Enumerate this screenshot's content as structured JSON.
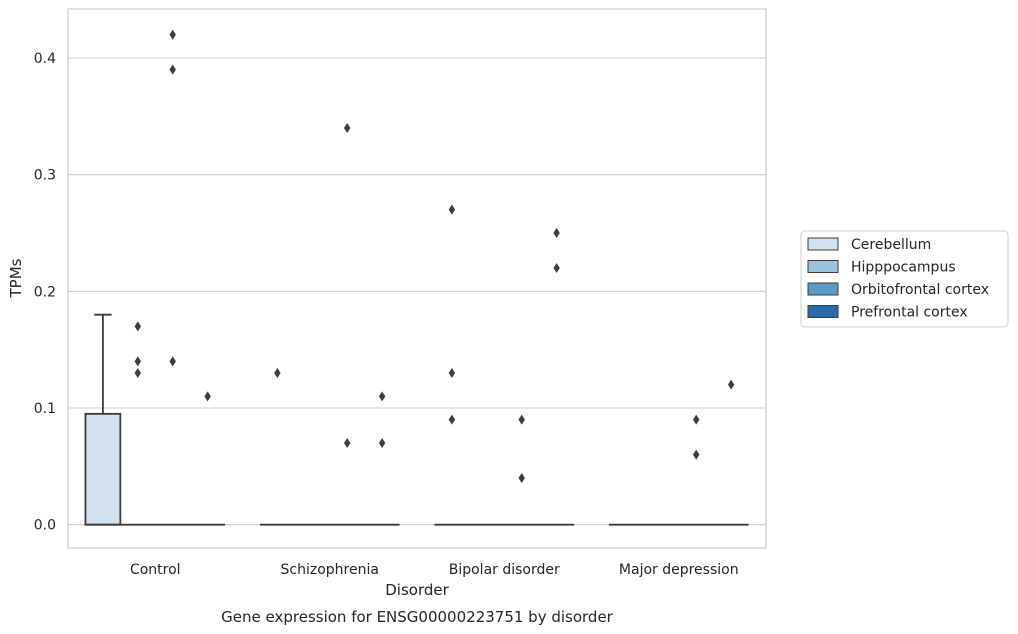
{
  "chart_data": {
    "type": "box",
    "title": "Gene expression for ENSG00000223751 by disorder",
    "xlabel": "Disorder",
    "ylabel": "TPMs",
    "categories": [
      "Control",
      "Schizophrenia",
      "Bipolar disorder",
      "Major depression"
    ],
    "ylim": [
      -0.02,
      0.442
    ],
    "yticks": [
      0.0,
      0.1,
      0.2,
      0.3,
      0.4
    ],
    "ytick_labels": [
      "0.0",
      "0.1",
      "0.2",
      "0.3",
      "0.4"
    ],
    "grid": "horizontal",
    "legend_position": "right",
    "series": [
      {
        "name": "Cerebellum",
        "color": "#d2e1f0",
        "boxes": [
          {
            "q1": 0.0,
            "median": 0.0,
            "q3": 0.095,
            "whisker_low": 0.0,
            "whisker_high": 0.18,
            "outliers": []
          },
          {
            "q1": 0.0,
            "median": 0.0,
            "q3": 0.0,
            "whisker_low": 0.0,
            "whisker_high": 0.0,
            "outliers": [
              0.13
            ]
          },
          {
            "q1": 0.0,
            "median": 0.0,
            "q3": 0.0,
            "whisker_low": 0.0,
            "whisker_high": 0.0,
            "outliers": [
              0.13,
              0.09,
              0.27
            ]
          },
          {
            "q1": 0.0,
            "median": 0.0,
            "q3": 0.0,
            "whisker_low": 0.0,
            "whisker_high": 0.0,
            "outliers": []
          }
        ]
      },
      {
        "name": "Hipppocampus",
        "color": "#9ac3dd",
        "boxes": [
          {
            "q1": 0.0,
            "median": 0.0,
            "q3": 0.0,
            "whisker_low": 0.0,
            "whisker_high": 0.0,
            "outliers": [
              0.17,
              0.14,
              0.13
            ]
          },
          {
            "q1": 0.0,
            "median": 0.0,
            "q3": 0.0,
            "whisker_low": 0.0,
            "whisker_high": 0.0,
            "outliers": []
          },
          {
            "q1": 0.0,
            "median": 0.0,
            "q3": 0.0,
            "whisker_low": 0.0,
            "whisker_high": 0.0,
            "outliers": []
          },
          {
            "q1": 0.0,
            "median": 0.0,
            "q3": 0.0,
            "whisker_low": 0.0,
            "whisker_high": 0.0,
            "outliers": []
          }
        ]
      },
      {
        "name": "Orbitofrontal cortex",
        "color": "#5a9ac8",
        "boxes": [
          {
            "q1": 0.0,
            "median": 0.0,
            "q3": 0.0,
            "whisker_low": 0.0,
            "whisker_high": 0.0,
            "outliers": [
              0.42,
              0.39,
              0.14
            ]
          },
          {
            "q1": 0.0,
            "median": 0.0,
            "q3": 0.0,
            "whisker_low": 0.0,
            "whisker_high": 0.0,
            "outliers": [
              0.34,
              0.07
            ]
          },
          {
            "q1": 0.0,
            "median": 0.0,
            "q3": 0.0,
            "whisker_low": 0.0,
            "whisker_high": 0.0,
            "outliers": [
              0.09,
              0.04
            ]
          },
          {
            "q1": 0.0,
            "median": 0.0,
            "q3": 0.0,
            "whisker_low": 0.0,
            "whisker_high": 0.0,
            "outliers": [
              0.09,
              0.06
            ]
          }
        ]
      },
      {
        "name": "Prefrontal cortex",
        "color": "#2a6aaa",
        "boxes": [
          {
            "q1": 0.0,
            "median": 0.0,
            "q3": 0.0,
            "whisker_low": 0.0,
            "whisker_high": 0.0,
            "outliers": [
              0.11
            ]
          },
          {
            "q1": 0.0,
            "median": 0.0,
            "q3": 0.0,
            "whisker_low": 0.0,
            "whisker_high": 0.0,
            "outliers": [
              0.11,
              0.07
            ]
          },
          {
            "q1": 0.0,
            "median": 0.0,
            "q3": 0.0,
            "whisker_low": 0.0,
            "whisker_high": 0.0,
            "outliers": [
              0.25,
              0.22
            ]
          },
          {
            "q1": 0.0,
            "median": 0.0,
            "q3": 0.0,
            "whisker_low": 0.0,
            "whisker_high": 0.0,
            "outliers": [
              0.12
            ]
          }
        ]
      }
    ]
  }
}
